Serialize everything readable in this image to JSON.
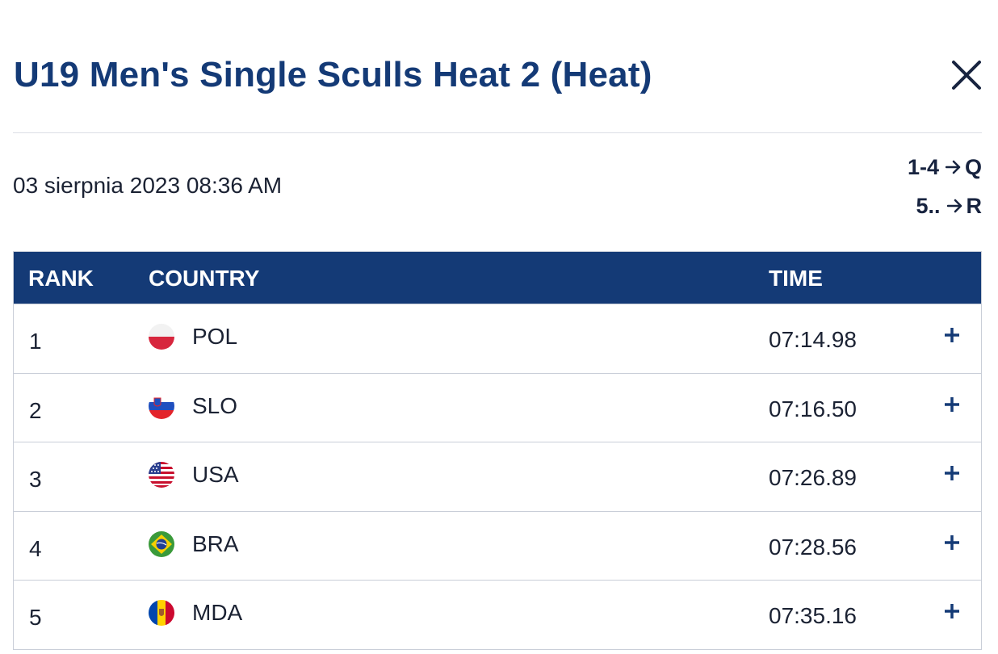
{
  "header": {
    "title": "U19 Men's Single Sculls Heat 2 (Heat)",
    "close_icon": "close-icon"
  },
  "race": {
    "datetime": "03 sierpnia 2023 08:36 AM",
    "progression": [
      {
        "from": "1-4",
        "to": "Q"
      },
      {
        "from": "5..",
        "to": "R"
      }
    ]
  },
  "table": {
    "headers": {
      "rank": "RANK",
      "country": "COUNTRY",
      "time": "TIME"
    },
    "rows": [
      {
        "rank": "1",
        "country": "POL",
        "flag": "poland-flag-icon",
        "time": "07:14.98"
      },
      {
        "rank": "2",
        "country": "SLO",
        "flag": "slovenia-flag-icon",
        "time": "07:16.50"
      },
      {
        "rank": "3",
        "country": "USA",
        "flag": "usa-flag-icon",
        "time": "07:26.89"
      },
      {
        "rank": "4",
        "country": "BRA",
        "flag": "brazil-flag-icon",
        "time": "07:28.56"
      },
      {
        "rank": "5",
        "country": "MDA",
        "flag": "moldova-flag-icon",
        "time": "07:35.16"
      }
    ]
  },
  "colors": {
    "brand": "#143a76",
    "divider": "#dcdfe5",
    "row_border": "#c9ced8"
  }
}
